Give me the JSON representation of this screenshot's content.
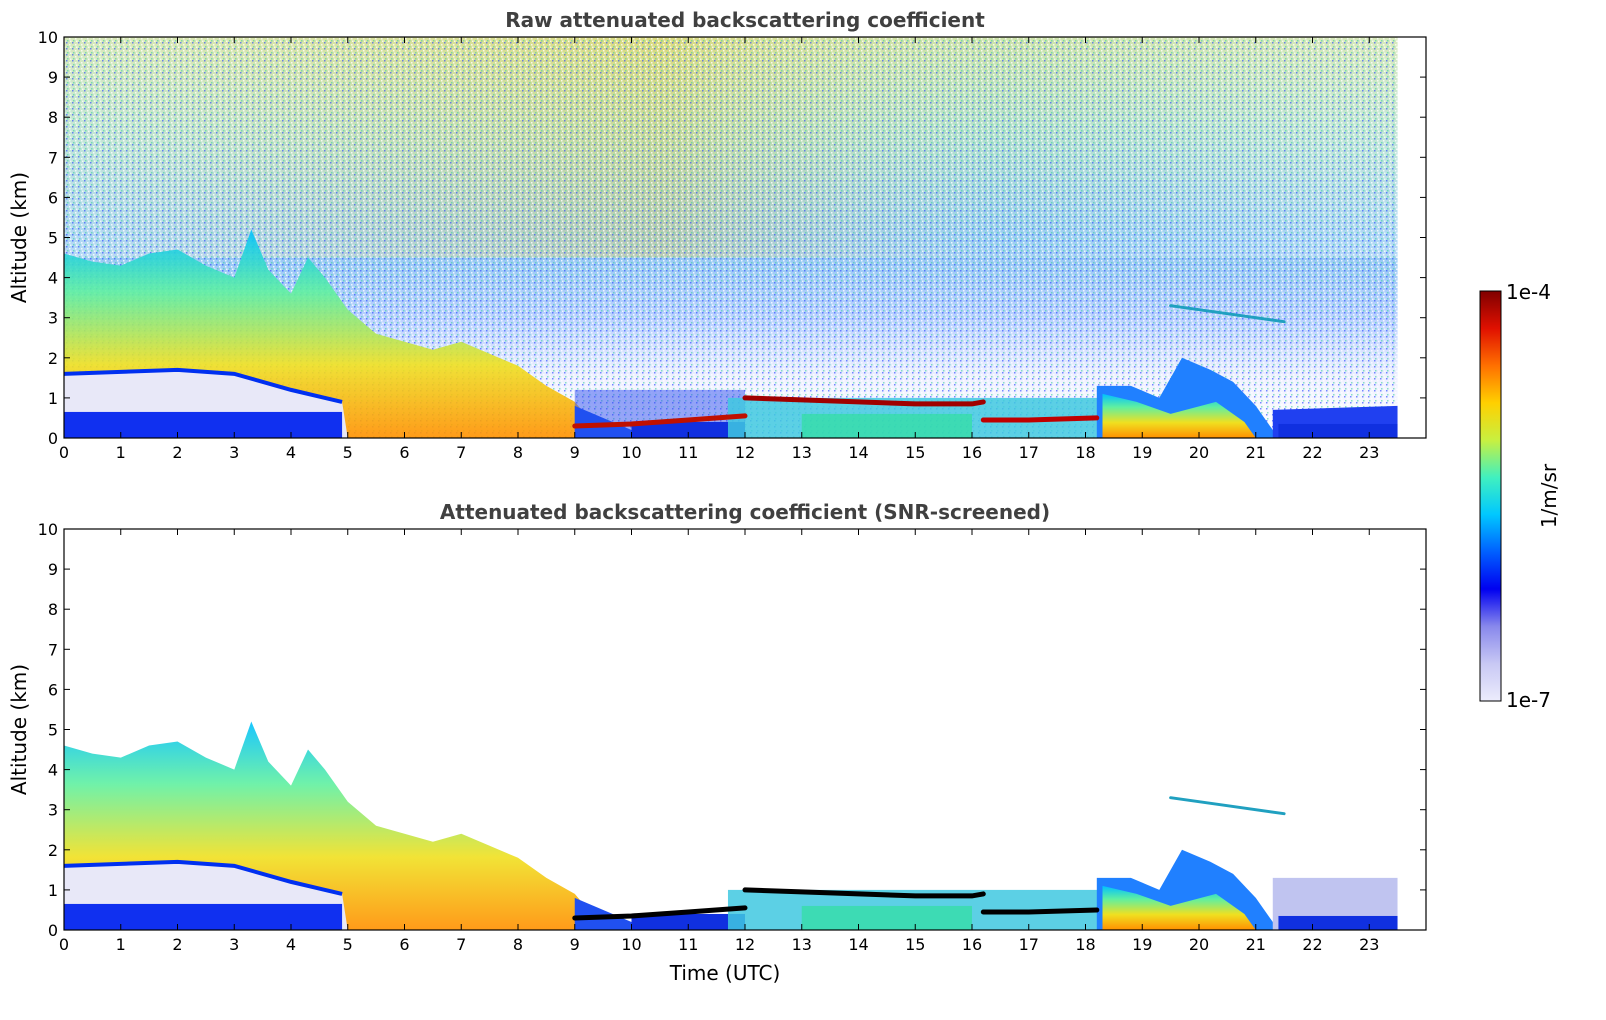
{
  "chart_data": [
    {
      "type": "heatmap",
      "title": "Raw attenuated backscattering coefficient",
      "xlabel": "",
      "ylabel": "Altitude (km)",
      "xlim": [
        0,
        24
      ],
      "ylim": [
        0,
        10
      ],
      "xticks": [
        0,
        1,
        2,
        3,
        4,
        5,
        6,
        7,
        8,
        9,
        10,
        11,
        12,
        13,
        14,
        15,
        16,
        17,
        18,
        19,
        20,
        21,
        22,
        23
      ],
      "yticks": [
        0,
        1,
        2,
        3,
        4,
        5,
        6,
        7,
        8,
        9,
        10
      ],
      "data_end_hour": 23.5,
      "features": [
        {
          "name": "boundary-layer-top",
          "x": [
            0,
            1,
            2,
            3,
            4,
            4.6,
            5
          ],
          "y": [
            1.6,
            1.65,
            1.7,
            1.6,
            1.2,
            1.0,
            0.9
          ]
        },
        {
          "name": "surface-layer-top",
          "x": [
            0,
            2,
            4,
            4.9
          ],
          "y": [
            0.6,
            0.6,
            0.65,
            0.7
          ]
        },
        {
          "name": "thin-layer",
          "x": [
            9,
            10,
            11,
            12
          ],
          "y": [
            0.3,
            0.35,
            0.45,
            0.55
          ]
        },
        {
          "name": "cloud-layer",
          "x": [
            12,
            13,
            14,
            15,
            16,
            16.2
          ],
          "y": [
            1.0,
            0.95,
            0.9,
            0.85,
            0.85,
            0.9
          ]
        },
        {
          "name": "low-cloud",
          "x": [
            16.2,
            17,
            18.2
          ],
          "y": [
            0.45,
            0.45,
            0.5
          ]
        },
        {
          "name": "elevated-layer",
          "x": [
            19.5,
            20.5,
            21.5
          ],
          "y": [
            3.3,
            3.1,
            2.9
          ]
        }
      ]
    },
    {
      "type": "heatmap",
      "title": "Attenuated backscattering coefficient (SNR-screened)",
      "xlabel": "Time (UTC)",
      "ylabel": "Altitude (km)",
      "xlim": [
        0,
        24
      ],
      "ylim": [
        0,
        10
      ],
      "xticks": [
        0,
        1,
        2,
        3,
        4,
        5,
        6,
        7,
        8,
        9,
        10,
        11,
        12,
        13,
        14,
        15,
        16,
        17,
        18,
        19,
        20,
        21,
        22,
        23
      ],
      "yticks": [
        0,
        1,
        2,
        3,
        4,
        5,
        6,
        7,
        8,
        9,
        10
      ],
      "data_end_hour": 23.5
    }
  ],
  "colorbar": {
    "label": "1/m/sr",
    "max_label": "1e-4",
    "min_label": "1e-7",
    "scale": "log",
    "colors": [
      "#ececfc",
      "#c8c8f4",
      "#8888ec",
      "#0000f0",
      "#0060ff",
      "#00c8ff",
      "#40f0c0",
      "#c8f040",
      "#ffd000",
      "#ff7000",
      "#e01000",
      "#800000"
    ]
  }
}
